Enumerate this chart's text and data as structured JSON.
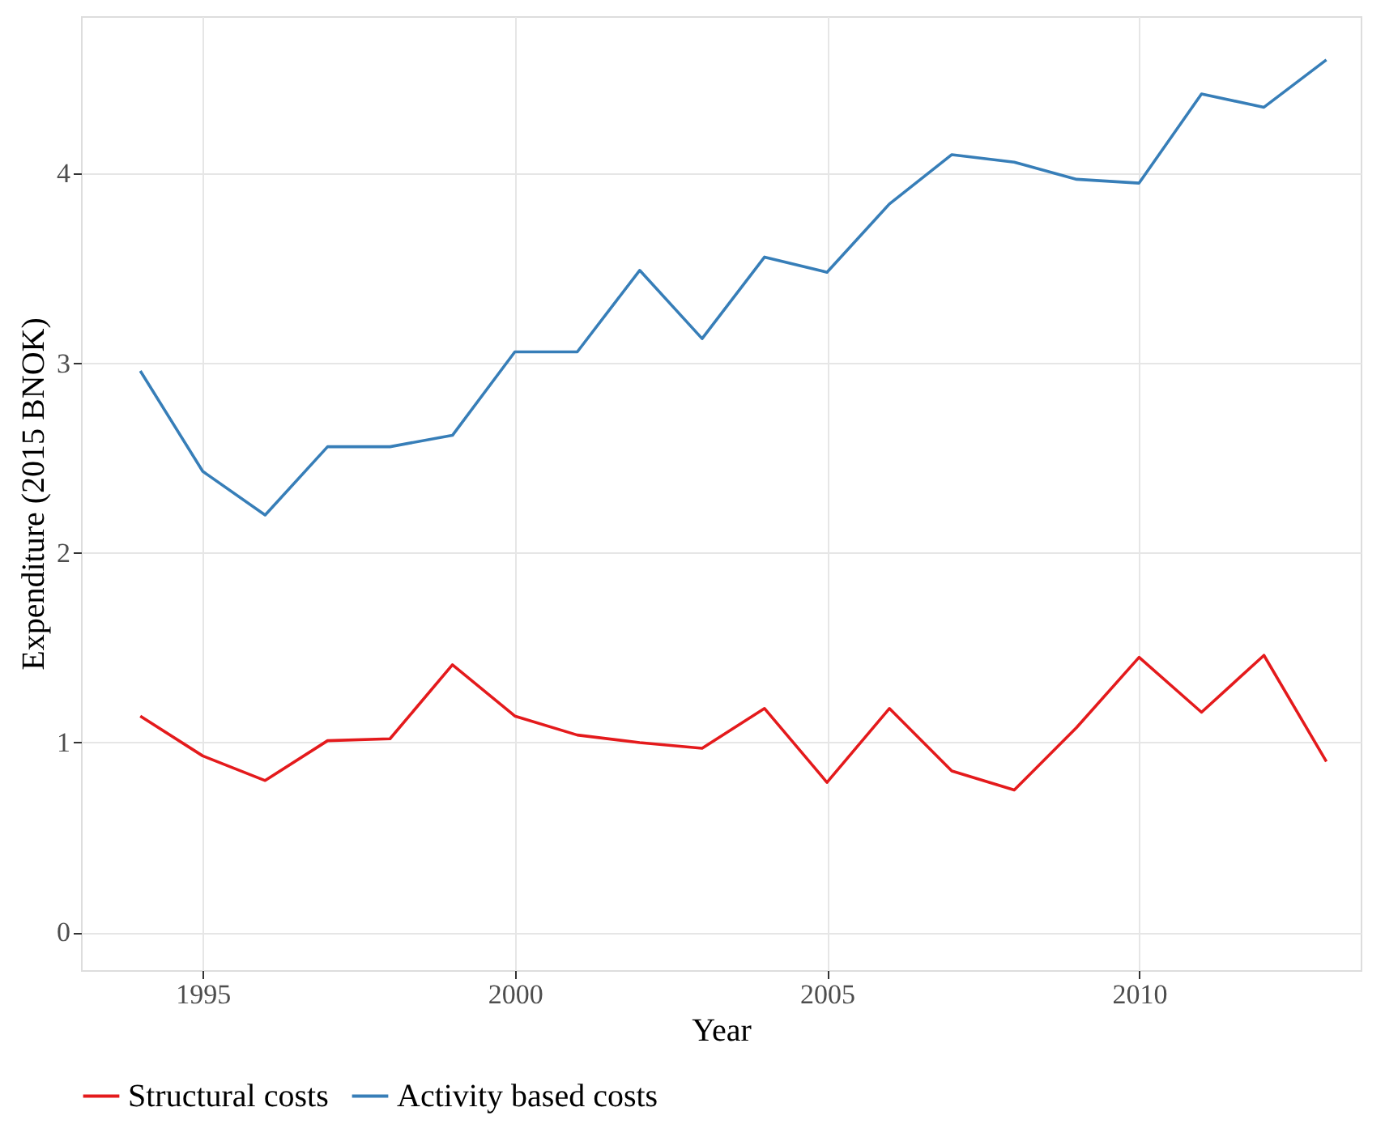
{
  "chart_data": {
    "type": "line",
    "xlabel": "Year",
    "ylabel": "Expenditure (2015 BNOK)",
    "x": [
      1994,
      1995,
      1996,
      1997,
      1998,
      1999,
      2000,
      2001,
      2002,
      2003,
      2004,
      2005,
      2006,
      2007,
      2008,
      2009,
      2010,
      2011,
      2012,
      2013
    ],
    "series": [
      {
        "name": "Structural costs",
        "color": "#e41a1c",
        "values": [
          1.14,
          0.93,
          0.8,
          1.01,
          1.02,
          1.41,
          1.14,
          1.04,
          1.0,
          0.97,
          1.18,
          0.79,
          1.18,
          0.85,
          0.75,
          1.08,
          1.45,
          1.16,
          1.46,
          0.9
        ]
      },
      {
        "name": "Activity based costs",
        "color": "#377eb8",
        "values": [
          2.96,
          2.43,
          2.2,
          2.56,
          2.56,
          2.62,
          3.06,
          3.06,
          3.49,
          3.13,
          3.56,
          3.48,
          3.84,
          4.1,
          4.06,
          3.97,
          3.95,
          4.42,
          4.35,
          4.6
        ]
      }
    ],
    "xlim": [
      1993.05,
      2013.55
    ],
    "xticks": [
      1995,
      2000,
      2005,
      2010
    ],
    "ylim": [
      -0.2,
      4.83
    ],
    "yticks": [
      0,
      1,
      2,
      3,
      4
    ],
    "grid": true,
    "legend": "bottom",
    "line_style": "solid",
    "marker": "none"
  }
}
